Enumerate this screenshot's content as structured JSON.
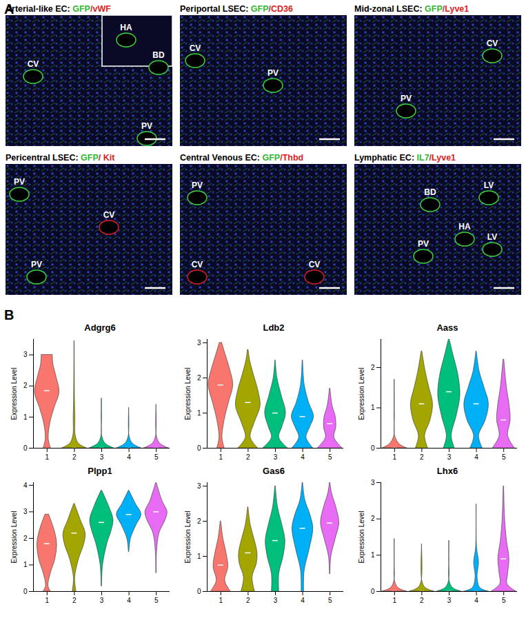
{
  "panel_labels": [
    "A",
    "B"
  ],
  "images": [
    {
      "title": [
        {
          "text": "Arterial-like EC: ",
          "color": "#000000"
        },
        {
          "text": "GFP",
          "color": "#2fb82f"
        },
        {
          "text": "/vWF",
          "color": "#d91e1e"
        }
      ],
      "annotations": [
        "CV",
        "HA",
        "BD",
        "PV"
      ]
    },
    {
      "title": [
        {
          "text": "Periportal LSEC: ",
          "color": "#000000"
        },
        {
          "text": "GFP",
          "color": "#2fb82f"
        },
        {
          "text": "/CD36",
          "color": "#d91e1e"
        }
      ],
      "annotations": [
        "CV",
        "PV"
      ]
    },
    {
      "title": [
        {
          "text": "Mid-zonal LSEC: ",
          "color": "#000000"
        },
        {
          "text": "GFP",
          "color": "#2fb82f"
        },
        {
          "text": "/Lyve1",
          "color": "#d91e1e"
        }
      ],
      "annotations": [
        "CV",
        "PV"
      ]
    },
    {
      "title": [
        {
          "text": "Pericentral LSEC: ",
          "color": "#000000"
        },
        {
          "text": "GFP",
          "color": "#2fb82f"
        },
        {
          "text": "/ Kit",
          "color": "#d91e1e"
        }
      ],
      "annotations": [
        "PV",
        "CV",
        "PV"
      ]
    },
    {
      "title": [
        {
          "text": "Central Venous EC: ",
          "color": "#000000"
        },
        {
          "text": "GFP",
          "color": "#2fb82f"
        },
        {
          "text": "/Thbd",
          "color": "#d91e1e"
        }
      ],
      "annotations": [
        "PV",
        "CV",
        "CV"
      ]
    },
    {
      "title": [
        {
          "text": "Lymphatic EC: ",
          "color": "#000000"
        },
        {
          "text": "IL7",
          "color": "#2fb82f"
        },
        {
          "text": "/Lyve1",
          "color": "#d91e1e"
        }
      ],
      "annotations": [
        "LV",
        "BD",
        "PV",
        "HA",
        "LV"
      ]
    }
  ],
  "chart_data": [
    {
      "type": "violin",
      "title": "Adgrg6",
      "y_label": "Expression Level",
      "categories": [
        "1",
        "2",
        "3",
        "4",
        "5"
      ],
      "colors": [
        "#F8766D",
        "#A3A500",
        "#00BF7D",
        "#00B0F6",
        "#E76BF3"
      ],
      "ylim": [
        0,
        3.5
      ],
      "yticks": [
        0,
        1,
        2,
        3
      ],
      "series": [
        {
          "median": 1.85,
          "profile_y": [
            0,
            0.3,
            0.8,
            1.3,
            1.8,
            2.3,
            2.7,
            3.0
          ],
          "profile_width": [
            0.3,
            0.12,
            0.25,
            0.6,
            1.0,
            0.75,
            0.5,
            0.45
          ]
        },
        {
          "median": 0,
          "profile_y": [
            0,
            0.15,
            0.4,
            1.0,
            1.5,
            2.5,
            3.45
          ],
          "profile_width": [
            1.0,
            0.35,
            0.1,
            0.07,
            0.04,
            0.02,
            0.01
          ]
        },
        {
          "median": 0,
          "profile_y": [
            0,
            0.15,
            0.4,
            1.0,
            1.6
          ],
          "profile_width": [
            1.0,
            0.3,
            0.03,
            0.02,
            0.01
          ]
        },
        {
          "median": 0,
          "profile_y": [
            0,
            0.15,
            0.4,
            1.3
          ],
          "profile_width": [
            1.0,
            0.3,
            0.03,
            0.01
          ]
        },
        {
          "median": 0,
          "profile_y": [
            0,
            0.15,
            0.4,
            1.4
          ],
          "profile_width": [
            1.0,
            0.3,
            0.03,
            0.01
          ]
        }
      ]
    },
    {
      "type": "violin",
      "title": "Ldb2",
      "y_label": "Expression Level",
      "categories": [
        "1",
        "2",
        "3",
        "4",
        "5"
      ],
      "colors": [
        "#F8766D",
        "#A3A500",
        "#00BF7D",
        "#00B0F6",
        "#E76BF3"
      ],
      "ylim": [
        0,
        3.1
      ],
      "yticks": [
        0,
        1,
        2,
        3
      ],
      "series": [
        {
          "median": 1.8,
          "profile_y": [
            0,
            0.3,
            0.8,
            1.3,
            1.8,
            2.3,
            2.7,
            3.0
          ],
          "profile_width": [
            0.3,
            0.12,
            0.3,
            0.65,
            1.0,
            0.7,
            0.35,
            0.1
          ]
        },
        {
          "median": 1.3,
          "profile_y": [
            0,
            0.3,
            0.7,
            1.2,
            1.6,
            2.1,
            2.5,
            2.8
          ],
          "profile_width": [
            0.8,
            0.2,
            0.5,
            1.0,
            0.85,
            0.45,
            0.15,
            0.03
          ]
        },
        {
          "median": 1.0,
          "profile_y": [
            0,
            0.3,
            0.6,
            1.0,
            1.5,
            2.0,
            2.5
          ],
          "profile_width": [
            1.0,
            0.3,
            0.55,
            0.85,
            0.5,
            0.15,
            0.02
          ]
        },
        {
          "median": 0.9,
          "profile_y": [
            0,
            0.3,
            0.6,
            0.9,
            1.3,
            1.8,
            2.5
          ],
          "profile_width": [
            0.85,
            0.3,
            0.6,
            0.9,
            0.5,
            0.15,
            0.02
          ]
        },
        {
          "median": 0.7,
          "profile_y": [
            0,
            0.3,
            0.6,
            0.9,
            1.2,
            1.7
          ],
          "profile_width": [
            1.0,
            0.35,
            0.5,
            0.45,
            0.2,
            0.02
          ]
        }
      ]
    },
    {
      "type": "violin",
      "title": "Aass",
      "y_label": "Expression Level",
      "categories": [
        "1",
        "2",
        "3",
        "4",
        "5"
      ],
      "colors": [
        "#F8766D",
        "#A3A500",
        "#00BF7D",
        "#00B0F6",
        "#E76BF3"
      ],
      "ylim": [
        0,
        2.7
      ],
      "yticks": [
        0,
        1,
        2
      ],
      "series": [
        {
          "median": 0,
          "profile_y": [
            0,
            0.1,
            0.3,
            0.8,
            1.7
          ],
          "profile_width": [
            1.0,
            0.4,
            0.04,
            0.02,
            0.01
          ]
        },
        {
          "median": 1.1,
          "profile_y": [
            0,
            0.3,
            0.7,
            1.1,
            1.5,
            1.9,
            2.4
          ],
          "profile_width": [
            0.5,
            0.25,
            0.7,
            0.9,
            0.6,
            0.3,
            0.03
          ]
        },
        {
          "median": 1.4,
          "profile_y": [
            0,
            0.3,
            0.8,
            1.3,
            1.8,
            2.3,
            2.7
          ],
          "profile_width": [
            0.45,
            0.2,
            0.6,
            0.9,
            0.75,
            0.35,
            0.03
          ]
        },
        {
          "median": 1.1,
          "profile_y": [
            0,
            0.3,
            0.7,
            1.1,
            1.5,
            1.9,
            2.4
          ],
          "profile_width": [
            0.5,
            0.2,
            0.75,
            1.0,
            0.65,
            0.25,
            0.02
          ]
        },
        {
          "median": 0.7,
          "profile_y": [
            0,
            0.3,
            0.7,
            1.1,
            1.5,
            2.2
          ],
          "profile_width": [
            0.9,
            0.35,
            0.55,
            0.45,
            0.25,
            0.03
          ]
        }
      ]
    },
    {
      "type": "violin",
      "title": "Plpp1",
      "y_label": "Expression Level",
      "categories": [
        "1",
        "2",
        "3",
        "4",
        "5"
      ],
      "colors": [
        "#F8766D",
        "#A3A500",
        "#00BF7D",
        "#00B0F6",
        "#E76BF3"
      ],
      "ylim": [
        0,
        4.1
      ],
      "yticks": [
        0,
        1,
        2,
        3,
        4
      ],
      "series": [
        {
          "median": 1.8,
          "profile_y": [
            0,
            0.2,
            0.7,
            1.2,
            1.8,
            2.3,
            2.9
          ],
          "profile_width": [
            0.3,
            0.1,
            0.3,
            0.65,
            0.8,
            0.6,
            0.15
          ]
        },
        {
          "median": 2.2,
          "profile_y": [
            0,
            0.5,
            1.2,
            1.8,
            2.2,
            2.7,
            3.3
          ],
          "profile_width": [
            0.15,
            0.05,
            0.35,
            0.8,
            0.9,
            0.5,
            0.03
          ]
        },
        {
          "median": 2.6,
          "profile_y": [
            0.2,
            1.0,
            1.8,
            2.3,
            2.7,
            3.2,
            3.8
          ],
          "profile_width": [
            0.02,
            0.1,
            0.45,
            0.8,
            0.95,
            0.6,
            0.03
          ]
        },
        {
          "median": 2.9,
          "profile_y": [
            1.5,
            2.0,
            2.5,
            2.9,
            3.3,
            3.8
          ],
          "profile_width": [
            0.02,
            0.15,
            0.6,
            1.0,
            0.55,
            0.02
          ]
        },
        {
          "median": 3.0,
          "profile_y": [
            0.7,
            1.5,
            2.2,
            2.7,
            3.0,
            3.4,
            4.1
          ],
          "profile_width": [
            0.02,
            0.05,
            0.25,
            0.75,
            0.9,
            0.5,
            0.02
          ]
        }
      ]
    },
    {
      "type": "violin",
      "title": "Gas6",
      "y_label": "Expression Level",
      "categories": [
        "1",
        "2",
        "3",
        "4",
        "5"
      ],
      "colors": [
        "#F8766D",
        "#A3A500",
        "#00BF7D",
        "#00B0F6",
        "#E76BF3"
      ],
      "ylim": [
        0,
        3.1
      ],
      "yticks": [
        0,
        1,
        2,
        3
      ],
      "series": [
        {
          "median": 0.75,
          "profile_y": [
            0,
            0.3,
            0.7,
            1.1,
            1.5,
            2.0
          ],
          "profile_width": [
            0.8,
            0.35,
            0.6,
            0.45,
            0.2,
            0.02
          ]
        },
        {
          "median": 1.1,
          "profile_y": [
            0,
            0.4,
            0.8,
            1.1,
            1.5,
            1.9,
            2.4
          ],
          "profile_width": [
            0.55,
            0.35,
            0.7,
            0.75,
            0.5,
            0.2,
            0.02
          ]
        },
        {
          "median": 1.45,
          "profile_y": [
            0,
            0.5,
            1.0,
            1.45,
            1.9,
            2.4,
            3.0
          ],
          "profile_width": [
            0.3,
            0.3,
            0.65,
            0.8,
            0.55,
            0.2,
            0.02
          ]
        },
        {
          "median": 1.8,
          "profile_y": [
            0,
            0.6,
            1.2,
            1.8,
            2.2,
            2.6,
            3.1
          ],
          "profile_width": [
            0.1,
            0.15,
            0.55,
            0.85,
            0.6,
            0.2,
            0.02
          ]
        },
        {
          "median": 1.95,
          "profile_y": [
            0.5,
            1.0,
            1.5,
            1.95,
            2.4,
            2.8,
            3.1
          ],
          "profile_width": [
            0.02,
            0.1,
            0.45,
            0.75,
            0.5,
            0.15,
            0.02
          ]
        }
      ]
    },
    {
      "type": "violin",
      "title": "Lhx6",
      "y_label": "Expression Level",
      "categories": [
        "1",
        "2",
        "3",
        "4",
        "5"
      ],
      "colors": [
        "#F8766D",
        "#A3A500",
        "#00BF7D",
        "#00B0F6",
        "#E76BF3"
      ],
      "ylim": [
        0,
        3
      ],
      "yticks": [
        0,
        1,
        2,
        3
      ],
      "series": [
        {
          "median": 0,
          "profile_y": [
            0,
            0.1,
            0.3,
            0.9,
            1.45
          ],
          "profile_width": [
            1.0,
            0.3,
            0.02,
            0.01,
            0.01
          ]
        },
        {
          "median": 0,
          "profile_y": [
            0,
            0.1,
            0.3,
            1.3
          ],
          "profile_width": [
            1.0,
            0.3,
            0.02,
            0.01
          ]
        },
        {
          "median": 0,
          "profile_y": [
            0,
            0.1,
            0.3,
            0.9,
            1.4
          ],
          "profile_width": [
            1.0,
            0.3,
            0.02,
            0.01,
            0.01
          ]
        },
        {
          "median": 0,
          "profile_y": [
            0,
            0.1,
            0.4,
            0.8,
            1.2,
            2.4
          ],
          "profile_width": [
            1.0,
            0.3,
            0.08,
            0.2,
            0.04,
            0.01
          ]
        },
        {
          "median": 0.9,
          "profile_y": [
            0,
            0.2,
            0.5,
            0.9,
            1.4,
            2.0,
            2.9
          ],
          "profile_width": [
            1.0,
            0.3,
            0.35,
            0.45,
            0.25,
            0.1,
            0.02
          ]
        }
      ]
    }
  ]
}
